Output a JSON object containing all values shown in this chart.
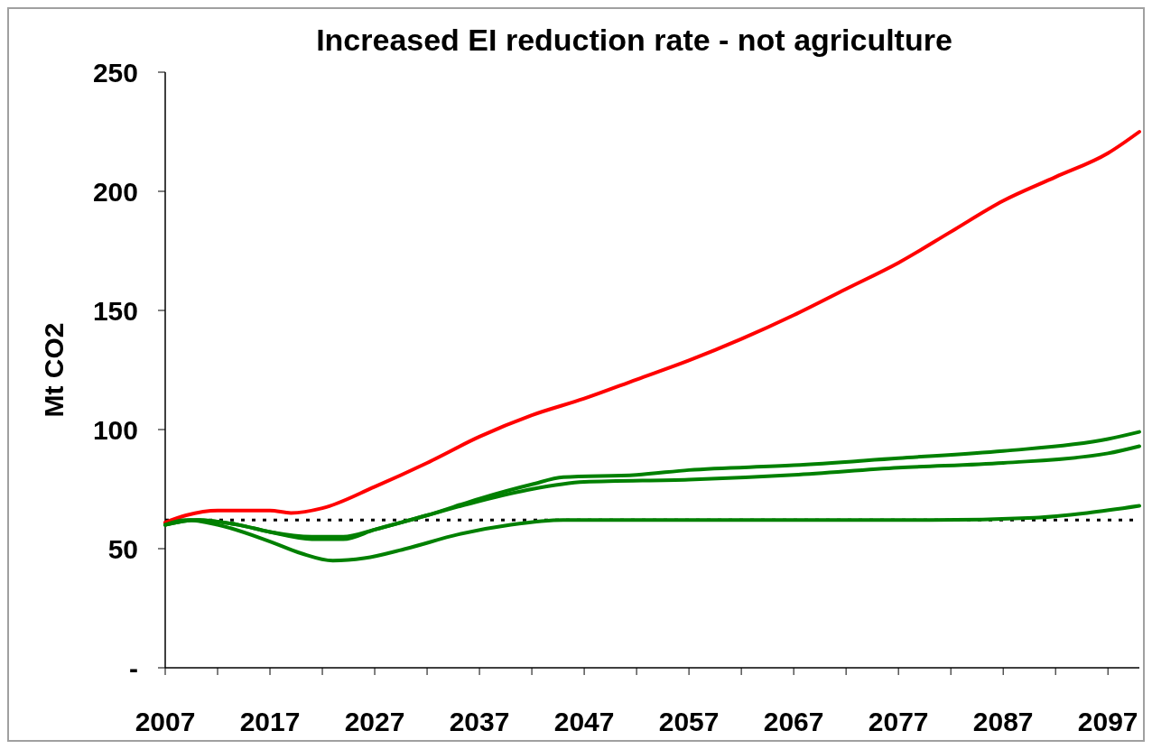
{
  "chart_data": {
    "type": "line",
    "title": "Increased EI reduction rate - not agriculture",
    "ylabel": "Mt CO2",
    "xlim": [
      2007,
      2100
    ],
    "ylim": [
      0,
      250
    ],
    "xticks": [
      2007,
      {
        "value": 2012,
        "label": null
      },
      2017,
      {
        "value": 2022,
        "label": null
      },
      2027,
      {
        "value": 2032,
        "label": null
      },
      2037,
      {
        "value": 2042,
        "label": null
      },
      2047,
      {
        "value": 2052,
        "label": null
      },
      2057,
      {
        "value": 2062,
        "label": null
      },
      2067,
      {
        "value": 2072,
        "label": null
      },
      2077,
      {
        "value": 2082,
        "label": null
      },
      2087,
      {
        "value": 2092,
        "label": null
      },
      2097
    ],
    "yticks": [
      {
        "value": 0,
        "label": "-"
      },
      50,
      100,
      150,
      200,
      250
    ],
    "grid": false,
    "line_style": "solid",
    "ref_lines": [
      {
        "axis": "y",
        "value": 62,
        "color": "#000000",
        "line_style": "dotted"
      }
    ],
    "series": [
      {
        "color": "#ff0000",
        "x": [
          2007,
          2009,
          2012,
          2017,
          2019,
          2022,
          2027,
          2032,
          2037,
          2042,
          2047,
          2052,
          2057,
          2062,
          2067,
          2072,
          2077,
          2082,
          2087,
          2092,
          2097,
          2100
        ],
        "values": [
          61,
          64,
          66,
          66,
          65,
          67,
          76,
          86,
          97,
          106,
          113,
          121,
          129,
          138,
          148,
          159,
          170,
          183,
          196,
          206,
          216,
          225
        ]
      },
      {
        "color": "#008000",
        "x": [
          2007,
          2010,
          2014,
          2017,
          2021,
          2024,
          2027,
          2032,
          2037,
          2042,
          2045,
          2052,
          2057,
          2067,
          2077,
          2087,
          2097,
          2100
        ],
        "values": [
          60,
          62,
          60,
          57,
          54,
          54,
          58,
          64,
          71,
          77,
          80,
          81,
          83,
          85,
          88,
          91,
          96,
          99
        ]
      },
      {
        "color": "#008000",
        "x": [
          2007,
          2010,
          2014,
          2017,
          2021,
          2024,
          2027,
          2032,
          2037,
          2042,
          2047,
          2057,
          2067,
          2077,
          2087,
          2097,
          2100
        ],
        "values": [
          60,
          62,
          60,
          57,
          55,
          55,
          58,
          64,
          70,
          75,
          78,
          79,
          81,
          84,
          86,
          90,
          93
        ]
      },
      {
        "color": "#008000",
        "x": [
          2007,
          2009,
          2012,
          2017,
          2020,
          2023,
          2026,
          2030,
          2035,
          2040,
          2045,
          2060,
          2080,
          2090,
          2095,
          2100
        ],
        "values": [
          60,
          62,
          60,
          53,
          48,
          45,
          46,
          50,
          56,
          60,
          62,
          62,
          62,
          63,
          65,
          68
        ]
      }
    ]
  }
}
